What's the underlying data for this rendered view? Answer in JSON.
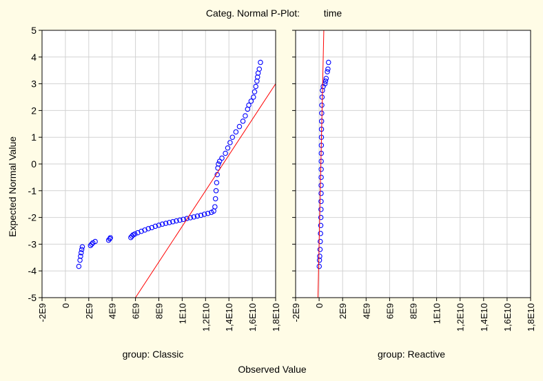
{
  "figure": {
    "title": "Categ. Normal P-Plot:",
    "variable": "time",
    "xlabel": "Observed Value",
    "ylabel": "Expected Normal Value",
    "colors": {
      "background": "#fffce6",
      "plot_bg": "#ffffff",
      "grid": "#d2d2d2",
      "points": "#0000ff",
      "line": "#ff0000",
      "axis": "#000000"
    }
  },
  "chart_data": [
    {
      "type": "scatter",
      "panel_label": "group: Classic",
      "xlim": [
        -2000000000.0,
        18000000000.0
      ],
      "ylim": [
        -5,
        5
      ],
      "x_tick_values": [
        -2000000000.0,
        0,
        2000000000.0,
        4000000000.0,
        6000000000.0,
        8000000000.0,
        10000000000.0,
        12000000000.0,
        14000000000.0,
        16000000000.0,
        18000000000.0
      ],
      "x_tick_labels": [
        "-2E9",
        "0",
        "2E9",
        "4E9",
        "6E9",
        "8E9",
        "1E10",
        "1,2E10",
        "1,4E10",
        "1,6E10",
        "1,8E10"
      ],
      "y_tick_values": [
        -5,
        -4,
        -3,
        -2,
        -1,
        0,
        1,
        2,
        3,
        4,
        5
      ],
      "y_tick_labels": [
        "-5",
        "-4",
        "-3",
        "-2",
        "-1",
        "0",
        "1",
        "2",
        "3",
        "4",
        "5"
      ],
      "grid": true,
      "reference_line": [
        [
          6000000000.0,
          -5.0
        ],
        [
          18000000000.0,
          3.0
        ]
      ],
      "points": [
        [
          1150000000.0,
          -3.83
        ],
        [
          1250000000.0,
          -3.6
        ],
        [
          1300000000.0,
          -3.45
        ],
        [
          1350000000.0,
          -3.32
        ],
        [
          1400000000.0,
          -3.2
        ],
        [
          1450000000.0,
          -3.1
        ],
        [
          2150000000.0,
          -3.05
        ],
        [
          2250000000.0,
          -3.0
        ],
        [
          2350000000.0,
          -2.95
        ],
        [
          2550000000.0,
          -2.9
        ],
        [
          3700000000.0,
          -2.85
        ],
        [
          3800000000.0,
          -2.8
        ],
        [
          3850000000.0,
          -2.76
        ],
        [
          5600000000.0,
          -2.75
        ],
        [
          5700000000.0,
          -2.7
        ],
        [
          5800000000.0,
          -2.65
        ],
        [
          5950000000.0,
          -2.62
        ],
        [
          6200000000.0,
          -2.57
        ],
        [
          6500000000.0,
          -2.52
        ],
        [
          6800000000.0,
          -2.47
        ],
        [
          7100000000.0,
          -2.42
        ],
        [
          7400000000.0,
          -2.38
        ],
        [
          7700000000.0,
          -2.33
        ],
        [
          8000000000.0,
          -2.29
        ],
        [
          8300000000.0,
          -2.25
        ],
        [
          8600000000.0,
          -2.22
        ],
        [
          8900000000.0,
          -2.19
        ],
        [
          9200000000.0,
          -2.16
        ],
        [
          9500000000.0,
          -2.13
        ],
        [
          9800000000.0,
          -2.1
        ],
        [
          10100000000.0,
          -2.07
        ],
        [
          10400000000.0,
          -2.04
        ],
        [
          10700000000.0,
          -2.01
        ],
        [
          11000000000.0,
          -1.98
        ],
        [
          11300000000.0,
          -1.95
        ],
        [
          11600000000.0,
          -1.92
        ],
        [
          11900000000.0,
          -1.88
        ],
        [
          12200000000.0,
          -1.85
        ],
        [
          12500000000.0,
          -1.81
        ],
        [
          12700000000.0,
          -1.76
        ],
        [
          12800000000.0,
          -1.6
        ],
        [
          12850000000.0,
          -1.3
        ],
        [
          12900000000.0,
          -1.0
        ],
        [
          12950000000.0,
          -0.7
        ],
        [
          13000000000.0,
          -0.4
        ],
        [
          13050000000.0,
          -0.15
        ],
        [
          13100000000.0,
          0.0
        ],
        [
          13200000000.0,
          0.1
        ],
        [
          13400000000.0,
          0.22
        ],
        [
          13700000000.0,
          0.4
        ],
        [
          13900000000.0,
          0.6
        ],
        [
          14100000000.0,
          0.8
        ],
        [
          14300000000.0,
          1.0
        ],
        [
          14600000000.0,
          1.2
        ],
        [
          14900000000.0,
          1.4
        ],
        [
          15200000000.0,
          1.6
        ],
        [
          15400000000.0,
          1.8
        ],
        [
          15600000000.0,
          2.05
        ],
        [
          15700000000.0,
          2.2
        ],
        [
          15900000000.0,
          2.35
        ],
        [
          16100000000.0,
          2.5
        ],
        [
          16200000000.0,
          2.7
        ],
        [
          16300000000.0,
          2.9
        ],
        [
          16400000000.0,
          3.1
        ],
        [
          16450000000.0,
          3.25
        ],
        [
          16500000000.0,
          3.4
        ],
        [
          16600000000.0,
          3.55
        ],
        [
          16700000000.0,
          3.8
        ]
      ]
    },
    {
      "type": "scatter",
      "panel_label": "group: Reactive",
      "xlim": [
        -2000000000.0,
        18000000000.0
      ],
      "ylim": [
        -5,
        5
      ],
      "x_tick_values": [
        -2000000000.0,
        0,
        2000000000.0,
        4000000000.0,
        6000000000.0,
        8000000000.0,
        10000000000.0,
        12000000000.0,
        14000000000.0,
        16000000000.0,
        18000000000.0
      ],
      "x_tick_labels": [
        "-2E9",
        "0",
        "2E9",
        "4E9",
        "6E9",
        "8E9",
        "1E10",
        "1,2E10",
        "1,4E10",
        "1,6E10",
        "1,8E10"
      ],
      "y_tick_values": [
        -5,
        -4,
        -3,
        -2,
        -1,
        0,
        1,
        2,
        3,
        4,
        5
      ],
      "grid": true,
      "reference_line": [
        [
          -100000000.0,
          -5.0
        ],
        [
          400000000.0,
          5.0
        ]
      ],
      "points": [
        [
          10000000.0,
          -3.83
        ],
        [
          30000000.0,
          -3.6
        ],
        [
          50000000.0,
          -3.45
        ],
        [
          80000000.0,
          -3.2
        ],
        [
          100000000.0,
          -2.9
        ],
        [
          120000000.0,
          -2.6
        ],
        [
          140000000.0,
          -2.3
        ],
        [
          150000000.0,
          -2.0
        ],
        [
          160000000.0,
          -1.7
        ],
        [
          165000000.0,
          -1.4
        ],
        [
          170000000.0,
          -1.1
        ],
        [
          172000000.0,
          -0.8
        ],
        [
          175000000.0,
          -0.5
        ],
        [
          178000000.0,
          -0.2
        ],
        [
          180000000.0,
          0.1
        ],
        [
          185000000.0,
          0.4
        ],
        [
          190000000.0,
          0.7
        ],
        [
          195000000.0,
          1.0
        ],
        [
          200000000.0,
          1.3
        ],
        [
          210000000.0,
          1.6
        ],
        [
          220000000.0,
          1.9
        ],
        [
          230000000.0,
          2.2
        ],
        [
          250000000.0,
          2.5
        ],
        [
          280000000.0,
          2.75
        ],
        [
          350000000.0,
          2.9
        ],
        [
          500000000.0,
          3.0
        ],
        [
          550000000.0,
          3.1
        ],
        [
          600000000.0,
          3.2
        ],
        [
          700000000.0,
          3.45
        ],
        [
          750000000.0,
          3.55
        ],
        [
          800000000.0,
          3.8
        ]
      ]
    }
  ]
}
